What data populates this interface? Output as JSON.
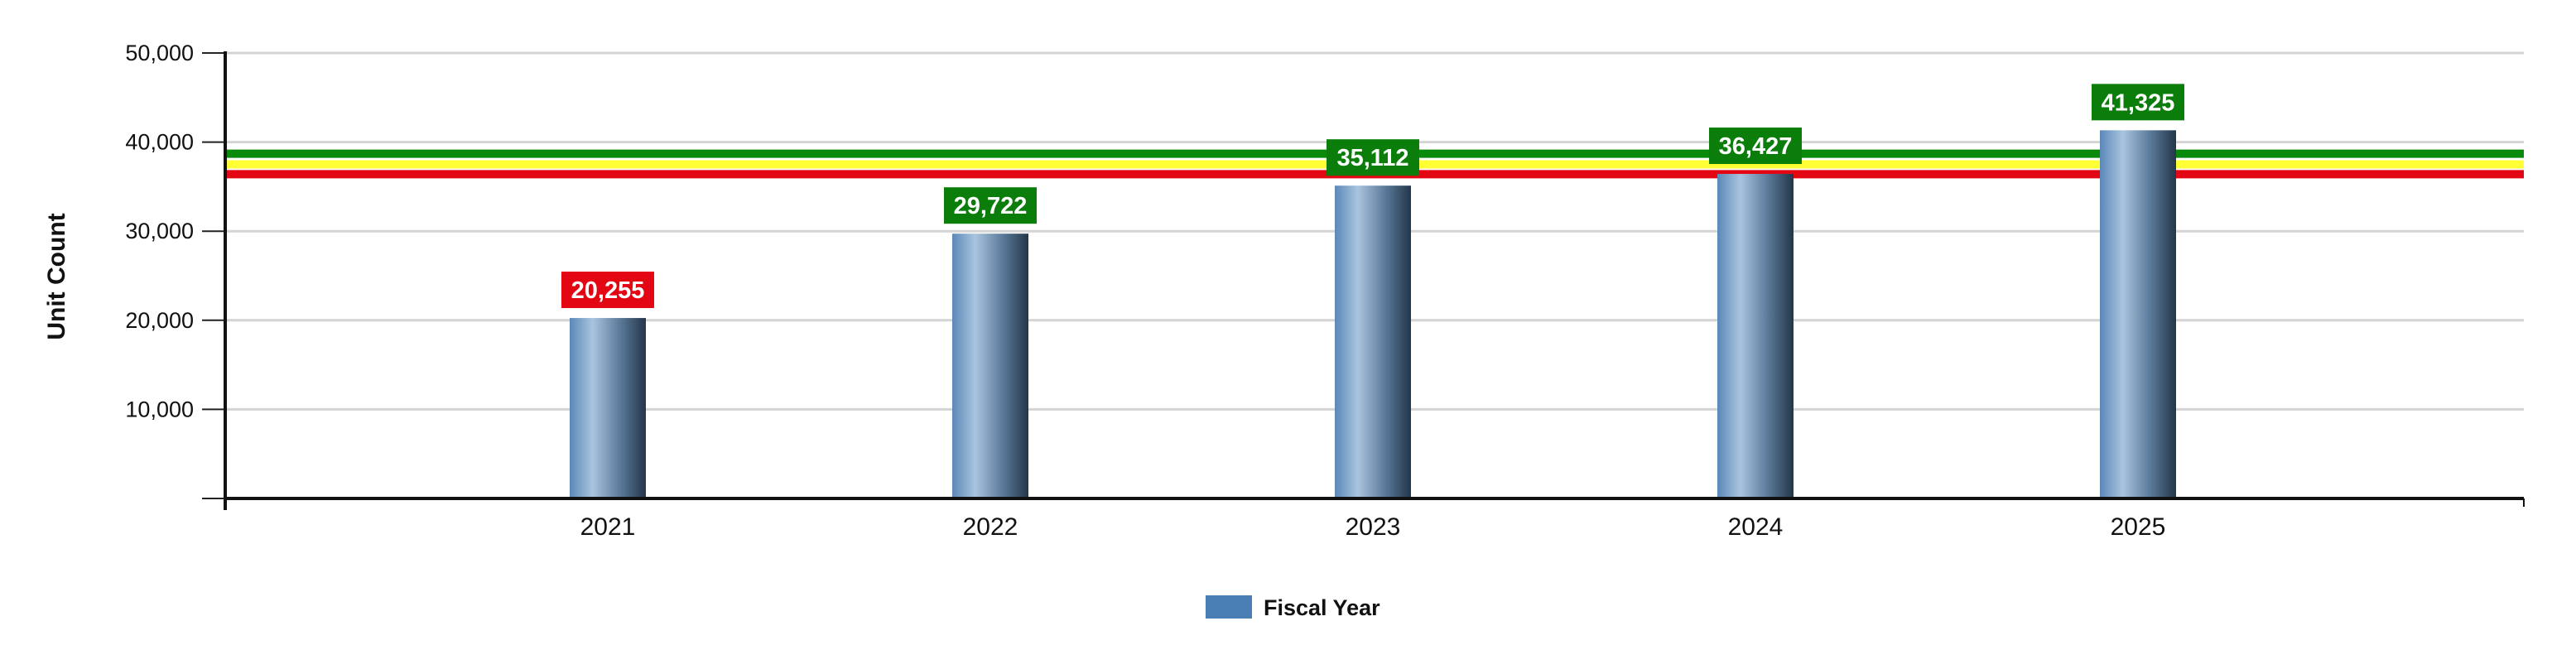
{
  "chart_data": {
    "type": "bar",
    "title": "",
    "xlabel": "",
    "ylabel": "Unit Count",
    "ylim": [
      0,
      50000
    ],
    "yticks": [
      10000,
      20000,
      30000,
      40000,
      50000
    ],
    "ytick_labels": [
      "10,000",
      "20,000",
      "30,000",
      "40,000",
      "50,000"
    ],
    "grid": true,
    "categories": [
      "2021",
      "2022",
      "2023",
      "2024",
      "2025"
    ],
    "series": [
      {
        "name": "Fiscal Year",
        "values": [
          20255,
          29722,
          35112,
          36427,
          41325
        ],
        "data_labels": [
          "20,255",
          "29,722",
          "35,112",
          "36,427",
          "41,325"
        ],
        "label_colors": [
          "#e30613",
          "#0a7d0a",
          "#0a7d0a",
          "#0a7d0a",
          "#0a7d0a"
        ]
      }
    ],
    "reference_lines": [
      {
        "value": 38700,
        "color": "#0a8a0a"
      },
      {
        "value": 37500,
        "color": "#ffff33"
      },
      {
        "value": 36400,
        "color": "#e30613"
      }
    ],
    "legend": {
      "position": "bottom-center",
      "entries": [
        "Fiscal Year"
      ],
      "swatch_color": "#4a7fb5"
    }
  }
}
